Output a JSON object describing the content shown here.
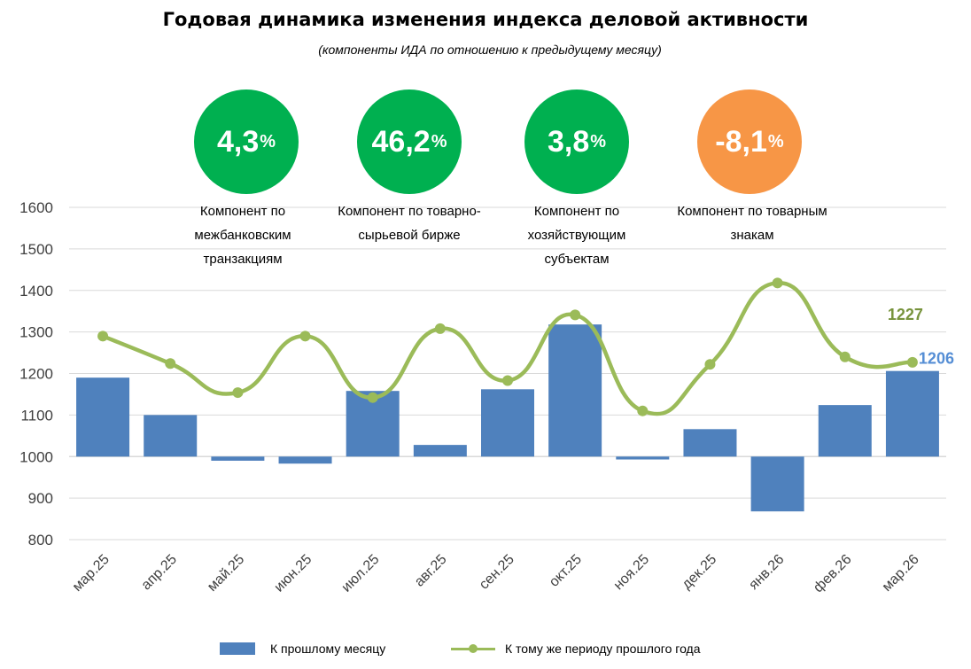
{
  "title": "Годовая динамика изменения индекса деловой активности",
  "subtitle": "(компоненты ИДА по отношению к предыдущему месяцу)",
  "components": [
    {
      "value": "4,3",
      "unit": "%",
      "label": "Компонент по межбанковским транзакциям",
      "color": "#00b050"
    },
    {
      "value": "46,2",
      "unit": "%",
      "label": "Компонент по товарно-сырьевой бирже",
      "color": "#00b050"
    },
    {
      "value": "3,8",
      "unit": "%",
      "label": "Компонент по хозяйствующим субъектам",
      "color": "#00b050"
    },
    {
      "value": "-8,1",
      "unit": "%",
      "label": "Компонент по товарным знакам",
      "color": "#f79646"
    }
  ],
  "chart_data": {
    "type": "bar+line",
    "categories": [
      "мар.25",
      "апр.25",
      "май.25",
      "июн.25",
      "июл.25",
      "авг.25",
      "сен.25",
      "окт.25",
      "ноя.25",
      "дек.25",
      "янв.26",
      "фев.26",
      "мар.26"
    ],
    "ylim": [
      800,
      1600
    ],
    "yticks": [
      800,
      900,
      1000,
      1100,
      1200,
      1300,
      1400,
      1500,
      1600
    ],
    "bar_baseline": 1000,
    "grid": true,
    "legend_position": "bottom",
    "series": [
      {
        "name": "К прошлому месяцу",
        "kind": "bar",
        "color": "#4f81bd",
        "values": [
          1190,
          1100,
          990,
          983,
          1158,
          1028,
          1162,
          1318,
          993,
          1066,
          868,
          1124,
          1206
        ]
      },
      {
        "name": "К тому же периоду прошлого года",
        "kind": "line",
        "color": "#9bbb59",
        "values": [
          1290,
          1224,
          1154,
          1290,
          1142,
          1308,
          1183,
          1341,
          1110,
          1222,
          1418,
          1240,
          1227
        ]
      }
    ],
    "annotations": [
      {
        "text": "1227",
        "series": 1,
        "index": 12,
        "color": "#77933c"
      },
      {
        "text": "1206",
        "series": 0,
        "index": 12,
        "color": "#558ed5"
      }
    ]
  }
}
